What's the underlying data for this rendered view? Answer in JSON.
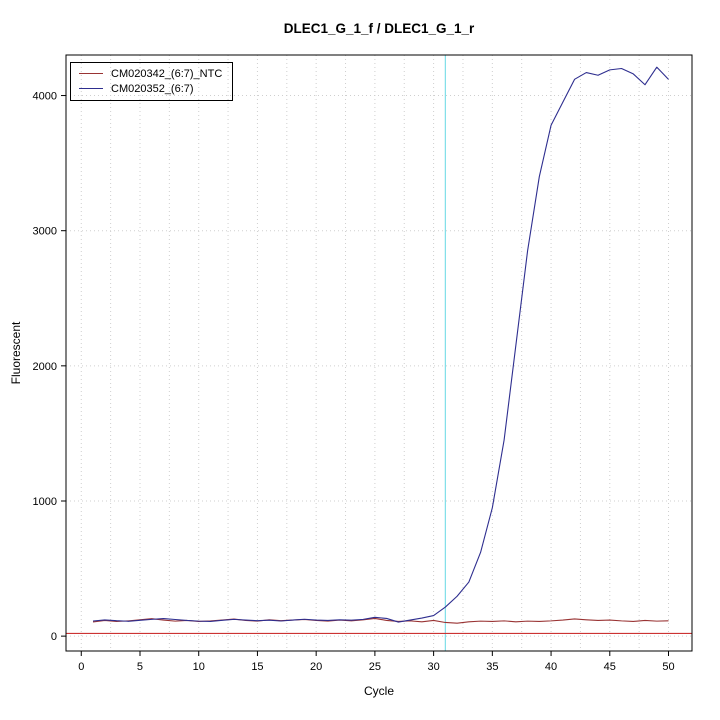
{
  "chart_data": {
    "type": "line",
    "title": "DLEC1_G_1_f / DLEC1_G_1_r",
    "xlabel": "Cycle",
    "ylabel": "Fluorescent",
    "x": [
      1,
      2,
      3,
      4,
      5,
      6,
      7,
      8,
      9,
      10,
      11,
      12,
      13,
      14,
      15,
      16,
      17,
      18,
      19,
      20,
      21,
      22,
      23,
      24,
      25,
      26,
      27,
      28,
      29,
      30,
      31,
      32,
      33,
      34,
      35,
      36,
      37,
      38,
      39,
      40,
      41,
      42,
      43,
      44,
      45,
      46,
      47,
      48,
      49,
      50
    ],
    "series": [
      {
        "name": "CM020342_(6:7)_NTC",
        "color": "#993333",
        "values": [
          105,
          116,
          109,
          113,
          121,
          129,
          119,
          111,
          116,
          109,
          113,
          119,
          126,
          116,
          111,
          121,
          114,
          119,
          123,
          116,
          111,
          119,
          113,
          121,
          131,
          116,
          109,
          113,
          106,
          116,
          101,
          96,
          106,
          111,
          109,
          113,
          106,
          111,
          109,
          113,
          119,
          127,
          121,
          116,
          119,
          113,
          109,
          116,
          111,
          113
        ]
      },
      {
        "name": "CM020352_(6:7)",
        "color": "#2e2e8f",
        "values": [
          112,
          120,
          114,
          110,
          117,
          124,
          130,
          123,
          116,
          111,
          109,
          117,
          124,
          119,
          114,
          118,
          112,
          119,
          125,
          119,
          116,
          121,
          118,
          124,
          139,
          131,
          104,
          119,
          134,
          152,
          215,
          295,
          400,
          620,
          950,
          1450,
          2150,
          2850,
          3400,
          3780,
          3950,
          4120,
          4170,
          4150,
          4190,
          4200,
          4160,
          4080,
          4210,
          4120
        ]
      }
    ],
    "threshold_line": {
      "y": 20,
      "color": "#cc3333"
    },
    "ct_line": {
      "x": 31,
      "color": "#7fdfe8"
    },
    "x_ticks": [
      0,
      5,
      10,
      15,
      20,
      25,
      30,
      35,
      40,
      45,
      50
    ],
    "y_ticks": [
      0,
      1000,
      2000,
      3000,
      4000
    ],
    "xlim": [
      -1.3,
      52
    ],
    "ylim": [
      -110,
      4300
    ],
    "grid": {
      "x_step": 2.5,
      "y_step": 1000,
      "color": "#cfcfcf",
      "style": "dotted"
    },
    "legend": {
      "position": "top-left",
      "entries": [
        "CM020342_(6:7)_NTC",
        "CM020352_(6:7)"
      ]
    }
  }
}
